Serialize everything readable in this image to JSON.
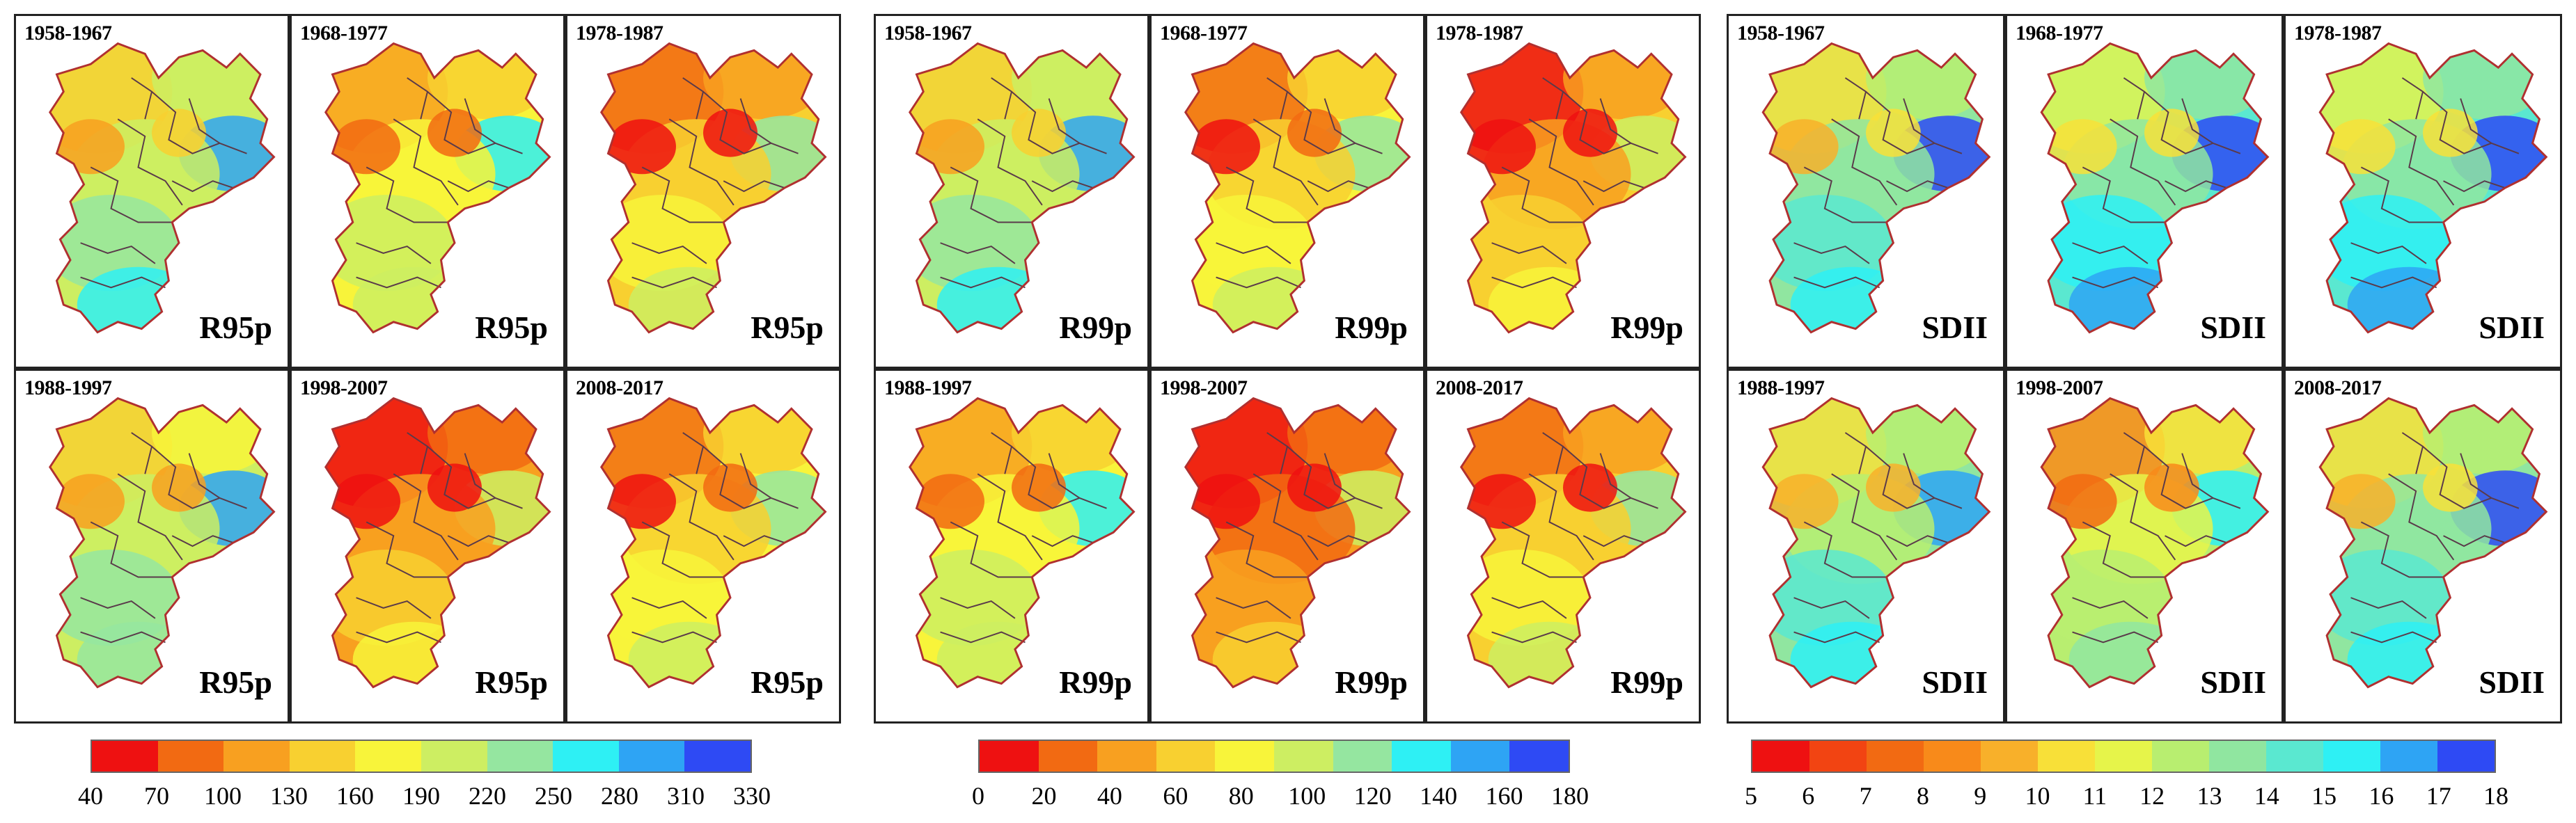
{
  "groups": [
    {
      "index": "R95p",
      "periods": [
        "1958-1967",
        "1968-1977",
        "1978-1987",
        "1988-1997",
        "1998-2007",
        "2008-2017"
      ],
      "panel_tones": [
        0.45,
        0.3,
        0.2,
        0.4,
        0.1,
        0.25
      ],
      "colorbar": {
        "ticks": [
          "40",
          "70",
          "100",
          "130",
          "160",
          "190",
          "220",
          "250",
          "280",
          "310",
          "330"
        ],
        "colors": [
          "#ee1111",
          "#f26a12",
          "#f8a020",
          "#f8d030",
          "#f8f43a",
          "#cdee62",
          "#95e6a0",
          "#2ef0f4",
          "#2ea4f4",
          "#2e4af4"
        ]
      }
    },
    {
      "index": "R99p",
      "periods": [
        "1958-1967",
        "1968-1977",
        "1978-1987",
        "1988-1997",
        "1998-2007",
        "2008-2017"
      ],
      "panel_tones": [
        0.45,
        0.25,
        0.15,
        0.3,
        0.05,
        0.2
      ],
      "colorbar": {
        "ticks": [
          "0",
          "20",
          "40",
          "60",
          "80",
          "100",
          "120",
          "140",
          "160",
          "180"
        ],
        "colors": [
          "#ee1111",
          "#f26a12",
          "#f8a020",
          "#f8d030",
          "#f8f43a",
          "#cdee62",
          "#95e6a0",
          "#2ef0f4",
          "#2ea4f4",
          "#2e4af4"
        ]
      }
    },
    {
      "index": "SDII",
      "periods": [
        "1958-1967",
        "1968-1977",
        "1978-1987",
        "1988-1997",
        "1998-2007",
        "2008-2017"
      ],
      "panel_tones": [
        0.55,
        0.6,
        0.6,
        0.5,
        0.4,
        0.55
      ],
      "colorbar": {
        "ticks": [
          "5",
          "6",
          "7",
          "8",
          "9",
          "10",
          "11",
          "12",
          "13",
          "14",
          "15",
          "16",
          "17",
          "18"
        ],
        "colors": [
          "#ee1111",
          "#f24412",
          "#f26a12",
          "#f88a1a",
          "#f8b02a",
          "#f8e038",
          "#e6f44a",
          "#b8ee70",
          "#90e6a0",
          "#5ae8d0",
          "#2ef0f4",
          "#2ea4f4",
          "#2e4af4"
        ]
      }
    }
  ]
}
